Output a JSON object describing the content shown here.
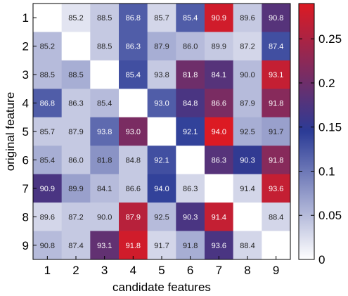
{
  "chart_data": {
    "type": "heatmap",
    "xlabel": "candidate features",
    "ylabel": "original feature",
    "x_categories": [
      "1",
      "2",
      "3",
      "4",
      "5",
      "6",
      "7",
      "8",
      "9"
    ],
    "y_categories": [
      "1",
      "2",
      "3",
      "4",
      "5",
      "6",
      "7",
      "8",
      "9"
    ],
    "labels": [
      [
        null,
        "85.2",
        "88.5",
        "86.8",
        "85.7",
        "85.4",
        "90.9",
        "89.6",
        "90.8"
      ],
      [
        "85.2",
        null,
        "88.5",
        "86.3",
        "87.9",
        "86.0",
        "89.9",
        "87.2",
        "87.4"
      ],
      [
        "88.5",
        "88.5",
        null,
        "85.4",
        "93.8",
        "81.8",
        "84.1",
        "90.0",
        "93.1"
      ],
      [
        "86.8",
        "86.3",
        "85.4",
        null,
        "93.0",
        "84.8",
        "86.6",
        "87.9",
        "91.8"
      ],
      [
        "85.7",
        "87.9",
        "93.8",
        "93.0",
        null,
        "92.1",
        "94.0",
        "92.5",
        "91.7"
      ],
      [
        "85.4",
        "86.0",
        "81.8",
        "84.8",
        "92.1",
        null,
        "86.3",
        "90.3",
        "91.8"
      ],
      [
        "90.9",
        "89.9",
        "84.1",
        "86.6",
        "94.0",
        "86.3",
        null,
        "91.4",
        "93.6"
      ],
      [
        "89.6",
        "87.2",
        "90.0",
        "87.9",
        "92.5",
        "90.3",
        "91.4",
        null,
        "88.4"
      ],
      [
        "90.8",
        "87.4",
        "93.1",
        "91.8",
        "91.7",
        "91.8",
        "93.6",
        "88.4",
        null
      ]
    ],
    "color_values": [
      [
        0.0,
        0.02,
        0.04,
        0.12,
        0.03,
        0.12,
        0.28,
        0.04,
        0.18
      ],
      [
        0.05,
        0.0,
        0.04,
        0.12,
        0.06,
        0.05,
        0.04,
        0.03,
        0.13
      ],
      [
        0.05,
        0.06,
        0.0,
        0.13,
        0.04,
        0.2,
        0.18,
        0.05,
        0.27
      ],
      [
        0.12,
        0.04,
        0.05,
        0.0,
        0.12,
        0.17,
        0.21,
        0.05,
        0.22
      ],
      [
        0.04,
        0.04,
        0.11,
        0.21,
        0.0,
        0.14,
        0.29,
        0.06,
        0.07
      ],
      [
        0.06,
        0.04,
        0.08,
        0.04,
        0.13,
        0.0,
        0.18,
        0.15,
        0.22
      ],
      [
        0.17,
        0.07,
        0.05,
        0.04,
        0.14,
        0.03,
        0.0,
        0.03,
        0.27
      ],
      [
        0.03,
        0.04,
        0.04,
        0.26,
        0.05,
        0.17,
        0.27,
        0.0,
        0.03
      ],
      [
        0.05,
        0.04,
        0.19,
        0.28,
        0.03,
        0.06,
        0.17,
        0.03,
        0.0
      ]
    ],
    "colorbar": {
      "range": [
        0,
        0.29
      ],
      "ticks": [
        "0",
        "0.05",
        "0.1",
        "0.15",
        "0.2",
        "0.25"
      ],
      "tick_values": [
        0,
        0.05,
        0.1,
        0.15,
        0.2,
        0.25
      ],
      "colormap": [
        "#ffffff",
        "#2b3b96",
        "#dc1a23"
      ]
    },
    "cell_text_colors": {
      "light": "#ffffff",
      "dark": "#222222"
    }
  }
}
